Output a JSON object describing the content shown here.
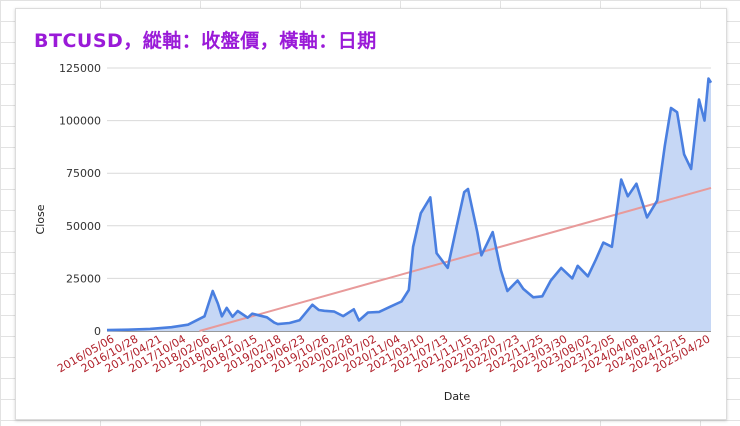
{
  "chart_data": {
    "type": "area",
    "title": "BTCUSD，縱軸：收盤價，橫軸：日期",
    "xlabel": "Date",
    "ylabel": "Close",
    "ylim": [
      0,
      125000
    ],
    "yticks": [
      "0",
      "25000",
      "50000",
      "75000",
      "100000",
      "125000"
    ],
    "xticks": [
      "2016/05/06",
      "2016/10/28",
      "2017/04/21",
      "2017/10/04",
      "2018/02/06",
      "2018/06/12",
      "2018/10/15",
      "2019/02/18",
      "2019/06/23",
      "2019/10/26",
      "2020/02/28",
      "2020/07/02",
      "2020/11/04",
      "2021/03/10",
      "2021/07/13",
      "2021/11/15",
      "2022/03/20",
      "2022/07/23",
      "2022/11/25",
      "2023/03/30",
      "2023/08/02",
      "2023/12/05",
      "2024/04/08",
      "2024/08/12",
      "2024/12/15",
      "2025/04/20"
    ],
    "grid": true,
    "colors": {
      "series": "#4a7fe0",
      "fill": "#c6d7f5",
      "trend": "#e89a9a",
      "title": "#9a1ad8",
      "tick": "#b0202a"
    },
    "series": [
      {
        "values": [
          [
            "2016/05/06",
            450
          ],
          [
            "2016/09/01",
            600
          ],
          [
            "2017/01/01",
            1000
          ],
          [
            "2017/05/01",
            1800
          ],
          [
            "2017/08/01",
            3000
          ],
          [
            "2017/11/01",
            7000
          ],
          [
            "2017/12/17",
            19000
          ],
          [
            "2018/01/15",
            13000
          ],
          [
            "2018/02/06",
            7000
          ],
          [
            "2018/03/05",
            11000
          ],
          [
            "2018/04/06",
            6800
          ],
          [
            "2018/05/05",
            9500
          ],
          [
            "2018/06/30",
            6300
          ],
          [
            "2018/07/25",
            8200
          ],
          [
            "2018/10/15",
            6500
          ],
          [
            "2018/11/25",
            4000
          ],
          [
            "2018/12/15",
            3300
          ],
          [
            "2019/02/18",
            3800
          ],
          [
            "2019/04/15",
            5100
          ],
          [
            "2019/06/26",
            12500
          ],
          [
            "2019/08/01",
            10000
          ],
          [
            "2019/09/01",
            9600
          ],
          [
            "2019/10/26",
            9200
          ],
          [
            "2019/12/15",
            7100
          ],
          [
            "2020/02/12",
            10300
          ],
          [
            "2020/03/12",
            5000
          ],
          [
            "2020/05/01",
            8800
          ],
          [
            "2020/07/02",
            9100
          ],
          [
            "2020/09/01",
            11500
          ],
          [
            "2020/11/04",
            14000
          ],
          [
            "2020/12/15",
            19500
          ],
          [
            "2021/01/08",
            40000
          ],
          [
            "2021/02/20",
            56000
          ],
          [
            "2021/04/14",
            63500
          ],
          [
            "2021/05/19",
            37000
          ],
          [
            "2021/07/20",
            30000
          ],
          [
            "2021/09/01",
            47000
          ],
          [
            "2021/10/20",
            66000
          ],
          [
            "2021/11/10",
            67500
          ],
          [
            "2022/01/01",
            47000
          ],
          [
            "2022/01/24",
            36000
          ],
          [
            "2022/03/28",
            47000
          ],
          [
            "2022/05/12",
            29000
          ],
          [
            "2022/06/18",
            19000
          ],
          [
            "2022/08/14",
            24000
          ],
          [
            "2022/09/15",
            20000
          ],
          [
            "2022/11/09",
            16000
          ],
          [
            "2022/12/30",
            16500
          ],
          [
            "2023/02/15",
            24000
          ],
          [
            "2023/04/14",
            30000
          ],
          [
            "2023/06/15",
            25000
          ],
          [
            "2023/07/15",
            31000
          ],
          [
            "2023/09/10",
            26000
          ],
          [
            "2023/10/25",
            34000
          ],
          [
            "2023/12/05",
            42000
          ],
          [
            "2024/01/22",
            40000
          ],
          [
            "2024/03/14",
            72000
          ],
          [
            "2024/04/20",
            64000
          ],
          [
            "2024/06/07",
            70000
          ],
          [
            "2024/08/05",
            54000
          ],
          [
            "2024/10/01",
            62000
          ],
          [
            "2024/11/12",
            88000
          ],
          [
            "2024/12/17",
            106000
          ],
          [
            "2025/01/20",
            104000
          ],
          [
            "2025/02/28",
            84000
          ],
          [
            "2025/04/08",
            77000
          ],
          [
            "2025/05/22",
            110000
          ],
          [
            "2025/06/22",
            100000
          ],
          [
            "2025/07/14",
            120000
          ],
          [
            "2025/07/28",
            118000
          ]
        ]
      },
      {
        "trend": true,
        "values": [
          [
            "2017/10/04",
            0
          ],
          [
            "2025/07/28",
            68000
          ]
        ]
      }
    ]
  }
}
